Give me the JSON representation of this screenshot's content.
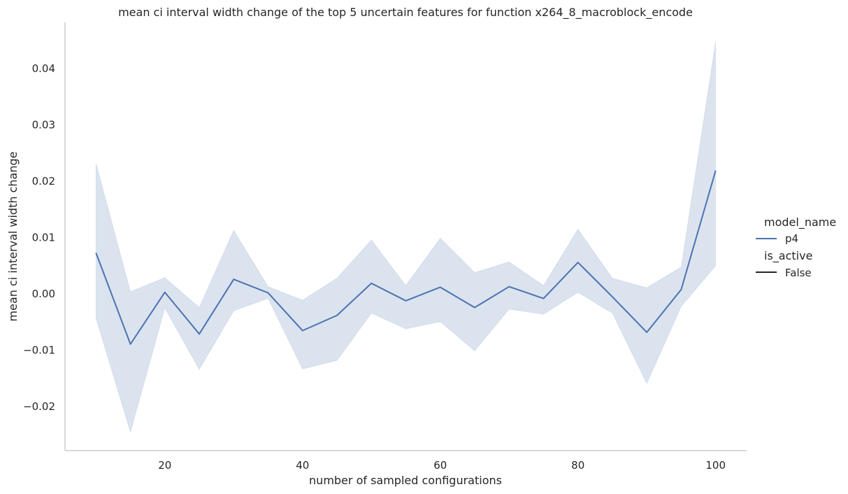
{
  "chart_data": {
    "type": "line",
    "title": "mean ci interval width change of the top 5 uncertain features for function x264_8_macroblock_encode",
    "xlabel": "number of sampled configurations",
    "ylabel": "mean ci interval width change",
    "xlim": [
      5.5,
      104.5
    ],
    "ylim": [
      -0.0278,
      0.0482
    ],
    "x_ticks": [
      20,
      40,
      60,
      80,
      100
    ],
    "x_tick_labels": [
      "20",
      "40",
      "60",
      "80",
      "100"
    ],
    "y_ticks": [
      -0.02,
      -0.01,
      0.0,
      0.01,
      0.02,
      0.03,
      0.04
    ],
    "y_tick_labels": [
      "−0.02",
      "−0.01",
      "0.00",
      "0.01",
      "0.02",
      "0.03",
      "0.04"
    ],
    "grid": false,
    "legend_position": "right",
    "x": [
      10,
      15,
      20,
      25,
      30,
      35,
      40,
      45,
      50,
      55,
      60,
      65,
      70,
      75,
      80,
      85,
      90,
      95,
      100
    ],
    "series": [
      {
        "name": "p4",
        "color": "#4c72b0",
        "values": [
          0.0073,
          -0.0089,
          0.0003,
          -0.0071,
          0.0026,
          0.0002,
          -0.0065,
          -0.0038,
          0.0019,
          -0.0012,
          0.0012,
          -0.0024,
          0.0013,
          -0.0008,
          0.0056,
          -0.0005,
          -0.0068,
          0.0008,
          0.0219
        ],
        "ci_lower": [
          -0.0043,
          -0.0245,
          -0.0025,
          -0.0134,
          -0.003,
          -0.0008,
          -0.0133,
          -0.0118,
          -0.0034,
          -0.0062,
          -0.0049,
          -0.0101,
          -0.0027,
          -0.0036,
          0.0003,
          -0.0034,
          -0.0159,
          -0.0022,
          0.005
        ],
        "ci_upper": [
          0.0232,
          0.0004,
          0.0029,
          -0.0024,
          0.0113,
          0.0013,
          -0.0011,
          0.0028,
          0.0096,
          0.0015,
          0.0099,
          0.0038,
          0.0057,
          0.0015,
          0.0115,
          0.0028,
          0.0011,
          0.0048,
          0.0448
        ]
      }
    ]
  },
  "legend": {
    "title_1": "model_name",
    "item_1": "p4",
    "title_2": "is_active",
    "item_2": "False"
  },
  "colors": {
    "line": "#4c72b0",
    "band": "#4c72b0",
    "axis": "#cccccc",
    "text": "#262626",
    "legend_style_line": "#262626"
  }
}
